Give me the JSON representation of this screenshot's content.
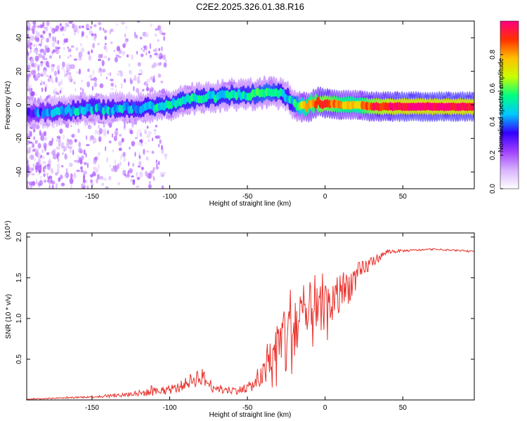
{
  "title": "C2E2.2025.326.01.38.R16",
  "chart_data": [
    {
      "type": "heatmap",
      "title": "C2E2.2025.326.01.38.R16",
      "xlabel": "Height of straight line (km)",
      "ylabel": "Frequency (Hz)",
      "xlim": [
        -192,
        96
      ],
      "ylim": [
        -50,
        50
      ],
      "xticks": [
        -150,
        -100,
        -50,
        0,
        50
      ],
      "yticks": [
        -40,
        -20,
        0,
        20,
        40
      ],
      "colorbar": {
        "label": "Normalized spectral amplitude",
        "range": [
          0,
          1
        ],
        "ticks": [
          0.0,
          0.2,
          0.4,
          0.6,
          0.8
        ],
        "tick_labels": [
          "0.0",
          "0.2",
          "0.4",
          "0.6",
          "0.8"
        ],
        "colors": [
          "#ffffff",
          "#d9b3ff",
          "#a040ff",
          "#3300ff",
          "#00c8ff",
          "#00ff80",
          "#c8ff00",
          "#ffc000",
          "#ff3000",
          "#ff0080"
        ]
      },
      "ridge": {
        "height_km": [
          -190,
          -175,
          -160,
          -150,
          -140,
          -130,
          -120,
          -110,
          -100,
          -90,
          -80,
          -70,
          -60,
          -50,
          -40,
          -35,
          -30,
          -25,
          -20,
          -15,
          -10,
          -5,
          0,
          10,
          20,
          30,
          50,
          70,
          95
        ],
        "frequency_hz": [
          -5,
          -4,
          -3,
          -2,
          -3,
          -2,
          -2,
          -1,
          0,
          3,
          4,
          5,
          6,
          6,
          7,
          8,
          7,
          5,
          1,
          -1,
          0,
          1,
          1,
          0,
          0,
          -1,
          -1,
          -1,
          -1
        ],
        "amplitude": [
          0.35,
          0.4,
          0.45,
          0.45,
          0.45,
          0.45,
          0.45,
          0.5,
          0.5,
          0.5,
          0.5,
          0.5,
          0.5,
          0.5,
          0.55,
          0.55,
          0.5,
          0.45,
          0.5,
          0.7,
          0.8,
          0.85,
          0.9,
          0.8,
          0.75,
          0.9,
          1.0,
          1.0,
          1.0
        ]
      }
    },
    {
      "type": "line",
      "xlabel": "Height of straight line (km)",
      "ylabel": "SNR (10 * v/v)",
      "multiplier": "(x10⁴)",
      "xlim": [
        -192,
        96
      ],
      "ylim": [
        0,
        2.05
      ],
      "xticks": [
        -150,
        -100,
        -50,
        0,
        50
      ],
      "yticks": [
        0.5,
        1.0,
        1.5,
        2.0
      ],
      "ytick_labels": [
        "0.5",
        "1.0",
        "1.5",
        "2.0"
      ],
      "color": "#e8302a",
      "series": [
        {
          "name": "SNR",
          "x": [
            -192,
            -175,
            -160,
            -150,
            -140,
            -130,
            -120,
            -110,
            -100,
            -95,
            -90,
            -85,
            -80,
            -75,
            -70,
            -65,
            -60,
            -55,
            -50,
            -45,
            -40,
            -35,
            -30,
            -25,
            -20,
            -15,
            -10,
            -5,
            0,
            5,
            10,
            15,
            20,
            25,
            30,
            35,
            40,
            50,
            60,
            70,
            80,
            90,
            96
          ],
          "y": [
            0.01,
            0.02,
            0.03,
            0.04,
            0.05,
            0.06,
            0.08,
            0.1,
            0.12,
            0.15,
            0.2,
            0.25,
            0.3,
            0.2,
            0.15,
            0.12,
            0.12,
            0.12,
            0.15,
            0.2,
            0.3,
            0.45,
            0.6,
            0.8,
            0.9,
            0.95,
            1.0,
            1.05,
            1.1,
            1.2,
            1.3,
            1.4,
            1.5,
            1.6,
            1.7,
            1.75,
            1.82,
            1.83,
            1.84,
            1.85,
            1.84,
            1.83,
            1.82
          ],
          "noise": [
            0.005,
            0.008,
            0.01,
            0.015,
            0.02,
            0.03,
            0.04,
            0.05,
            0.05,
            0.06,
            0.07,
            0.1,
            0.12,
            0.08,
            0.05,
            0.05,
            0.05,
            0.05,
            0.06,
            0.08,
            0.15,
            0.3,
            0.5,
            0.6,
            0.55,
            0.5,
            0.45,
            0.35,
            0.3,
            0.3,
            0.28,
            0.22,
            0.18,
            0.12,
            0.08,
            0.05,
            0.03,
            0.015,
            0.012,
            0.01,
            0.01,
            0.01,
            0.01
          ]
        }
      ]
    }
  ]
}
